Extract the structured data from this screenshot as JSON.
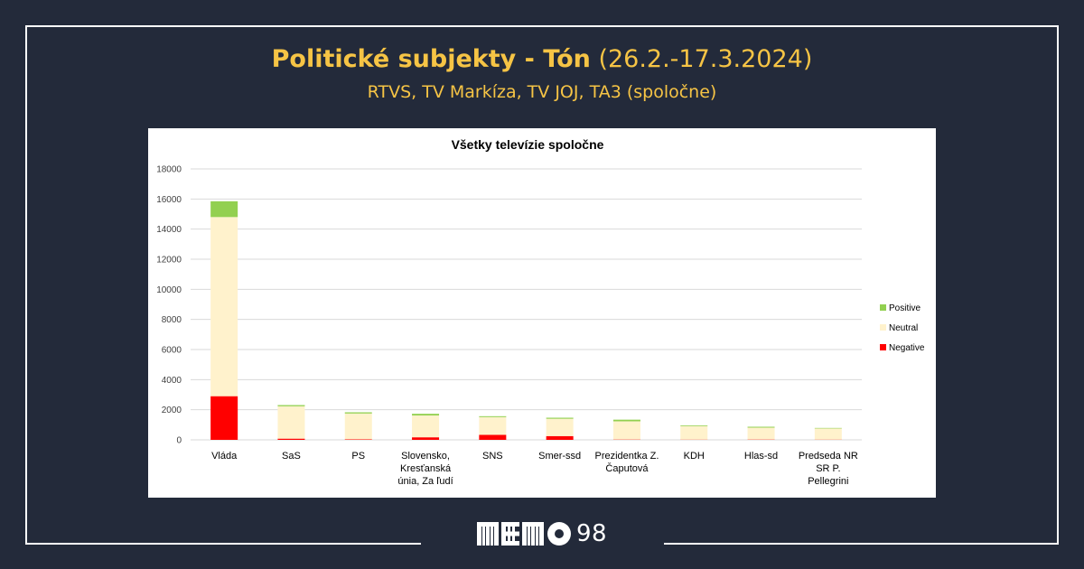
{
  "header": {
    "title_bold": "Politické subjekty - Tón",
    "title_dates": "(26.2.-17.3.2024)",
    "subtitle": "RTVS, TV Markíza, TV JOJ, TA3 (spoločne)"
  },
  "logo": {
    "number": "98"
  },
  "colors": {
    "background": "#232a3a",
    "accent": "#f6c445",
    "positive": "#92d050",
    "neutral": "#fff2cc",
    "negative": "#ff0000"
  },
  "chart_data": {
    "type": "bar",
    "stacked": true,
    "title": "Všetky televízie spoločne",
    "categories": [
      [
        "Vláda"
      ],
      [
        "SaS"
      ],
      [
        "PS"
      ],
      [
        "Slovensko,",
        "Kresťanská",
        "únia, Za ľudí"
      ],
      [
        "SNS"
      ],
      [
        "Smer-ssd"
      ],
      [
        "Prezidentka Z.",
        "Čaputová"
      ],
      [
        "KDH"
      ],
      [
        "Hlas-sd"
      ],
      [
        "Predseda NR",
        "SR P.",
        "Pellegrini"
      ]
    ],
    "series": [
      {
        "name": "Negative",
        "color": "#ff0000",
        "values": [
          2900,
          80,
          30,
          170,
          330,
          250,
          20,
          15,
          20,
          15
        ]
      },
      {
        "name": "Neutral",
        "color": "#fff2cc",
        "values": [
          11900,
          2150,
          1720,
          1450,
          1180,
          1150,
          1210,
          900,
          790,
          740
        ]
      },
      {
        "name": "Positive",
        "color": "#92d050",
        "values": [
          1050,
          80,
          80,
          110,
          60,
          70,
          110,
          50,
          60,
          35
        ]
      }
    ],
    "y_ticks": [
      "0",
      "2000",
      "4000",
      "6000",
      "8000",
      "10000",
      "12000",
      "14000",
      "16000",
      "18000"
    ],
    "ylim": [
      0,
      18000
    ],
    "grid": true,
    "legend_position": "right",
    "legend": [
      "Positive",
      "Neutral",
      "Negative"
    ]
  }
}
